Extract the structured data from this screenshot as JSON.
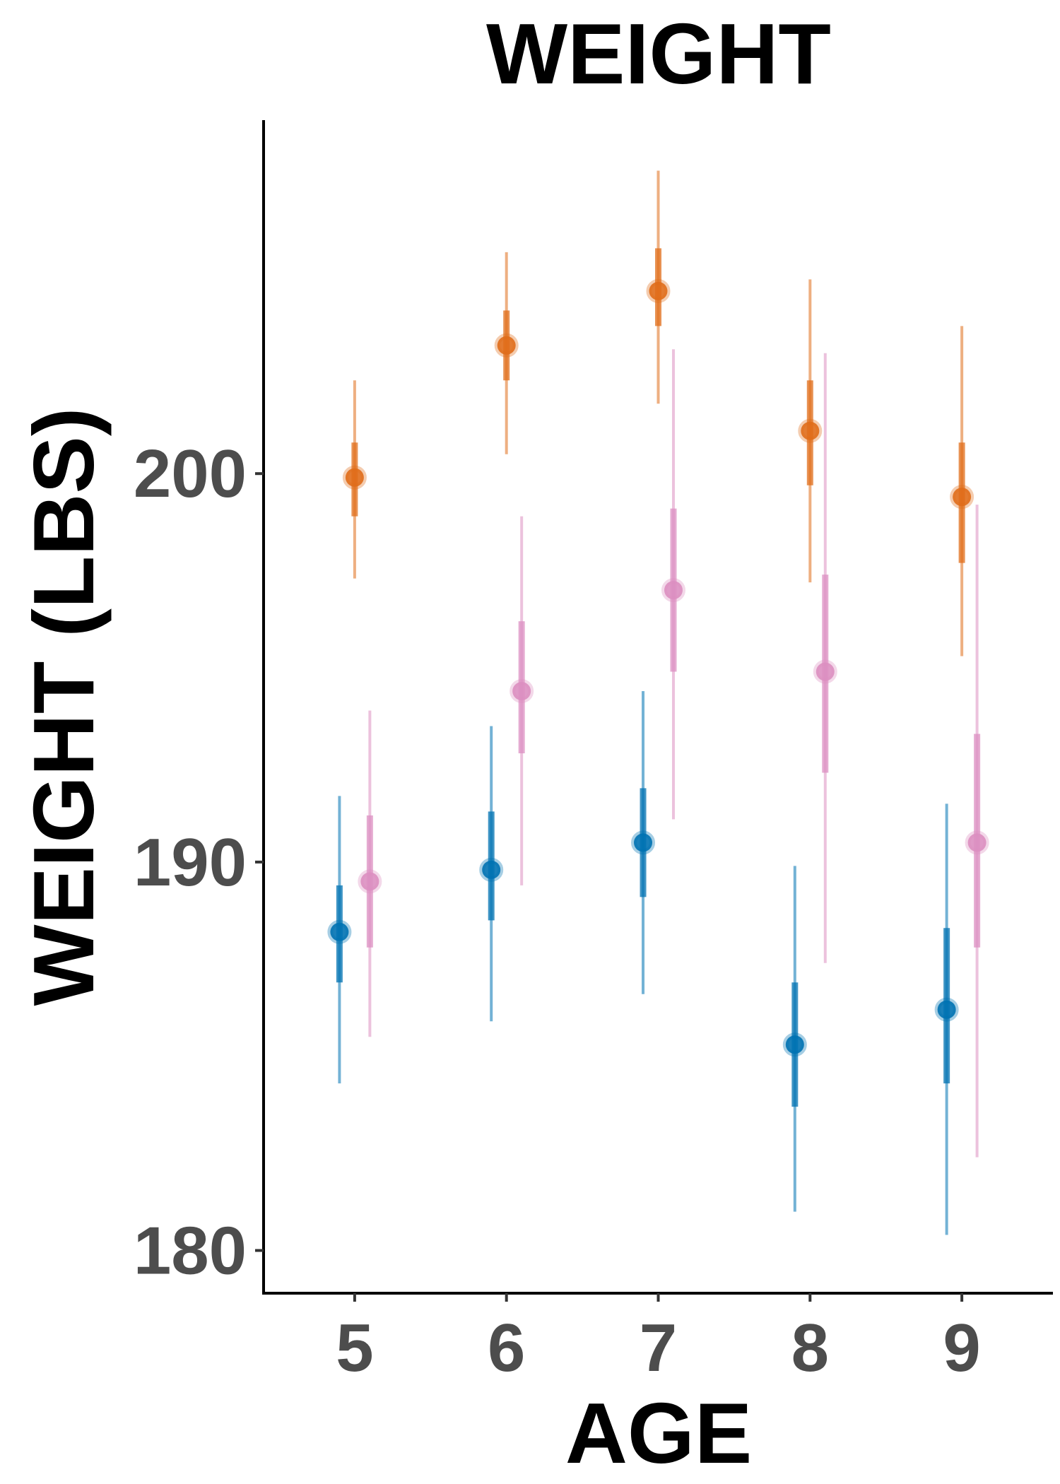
{
  "chart_data": {
    "type": "scatter",
    "title": "WEIGHT",
    "xlabel": "AGE",
    "ylabel": "WEIGHT (LBS)",
    "x_ticks": [
      "5",
      "6",
      "7",
      "8",
      "9"
    ],
    "y_ticks": [
      "180",
      "190",
      "200"
    ],
    "xlim": [
      4.4,
      9.6
    ],
    "ylim": [
      178.9,
      209.1
    ],
    "grid": false,
    "legend": "none",
    "series": [
      {
        "color": "#0072b2",
        "dodge": -0.1,
        "points": [
          {
            "x": 5,
            "y": 188.2,
            "inner": [
              186.9,
              189.4
            ],
            "outer": [
              184.3,
              191.7
            ]
          },
          {
            "x": 6,
            "y": 189.8,
            "inner": [
              188.5,
              191.3
            ],
            "outer": [
              185.9,
              193.5
            ]
          },
          {
            "x": 7,
            "y": 190.5,
            "inner": [
              189.1,
              191.9
            ],
            "outer": [
              186.6,
              194.4
            ]
          },
          {
            "x": 8,
            "y": 185.3,
            "inner": [
              183.7,
              186.9
            ],
            "outer": [
              181.0,
              189.9
            ]
          },
          {
            "x": 9,
            "y": 186.2,
            "inner": [
              184.3,
              188.3
            ],
            "outer": [
              180.4,
              191.5
            ]
          }
        ]
      },
      {
        "color": "#e06d1a",
        "dodge": 0.0,
        "points": [
          {
            "x": 5,
            "y": 199.9,
            "inner": [
              198.9,
              200.8
            ],
            "outer": [
              197.3,
              202.4
            ]
          },
          {
            "x": 6,
            "y": 203.3,
            "inner": [
              202.4,
              204.2
            ],
            "outer": [
              200.5,
              205.7
            ]
          },
          {
            "x": 7,
            "y": 204.7,
            "inner": [
              203.8,
              205.8
            ],
            "outer": [
              201.8,
              207.8
            ]
          },
          {
            "x": 8,
            "y": 201.1,
            "inner": [
              199.7,
              202.4
            ],
            "outer": [
              197.2,
              205.0
            ]
          },
          {
            "x": 9,
            "y": 199.4,
            "inner": [
              197.7,
              200.8
            ],
            "outer": [
              195.3,
              203.8
            ]
          }
        ]
      },
      {
        "color": "#dc8fc1",
        "dodge": 0.1,
        "points": [
          {
            "x": 5,
            "y": 189.5,
            "inner": [
              187.8,
              191.2
            ],
            "outer": [
              185.5,
              193.9
            ]
          },
          {
            "x": 6,
            "y": 194.4,
            "inner": [
              192.8,
              196.2
            ],
            "outer": [
              189.4,
              198.9
            ]
          },
          {
            "x": 7,
            "y": 197.0,
            "inner": [
              194.9,
              199.1
            ],
            "outer": [
              191.1,
              203.2
            ]
          },
          {
            "x": 8,
            "y": 194.9,
            "inner": [
              192.3,
              197.4
            ],
            "outer": [
              187.4,
              203.1
            ]
          },
          {
            "x": 9,
            "y": 190.5,
            "inner": [
              187.8,
              193.3
            ],
            "outer": [
              182.4,
              199.2
            ]
          }
        ]
      }
    ]
  }
}
